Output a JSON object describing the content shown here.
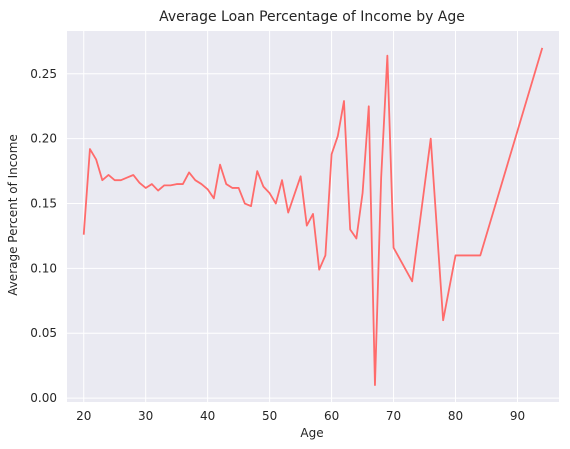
{
  "chart_data": {
    "type": "line",
    "title": "Average Loan Percentage of Income by Age",
    "xlabel": "Age",
    "ylabel": "Average Percent of Income",
    "xlim": [
      17.3,
      96.7
    ],
    "ylim": [
      -0.003,
      0.283
    ],
    "xticks": [
      20,
      30,
      40,
      50,
      60,
      70,
      80,
      90
    ],
    "yticks": [
      0.0,
      0.05,
      0.1,
      0.15,
      0.2,
      0.25
    ],
    "ytick_labels": [
      "0.00",
      "0.05",
      "0.10",
      "0.15",
      "0.20",
      "0.25"
    ],
    "grid": true,
    "background": "#eaeaf2",
    "grid_color": "#ffffff",
    "line_color": "#ff6b6b",
    "series": [
      {
        "x": [
          20,
          21,
          22,
          23,
          24,
          25,
          26,
          27,
          28,
          29,
          30,
          31,
          32,
          33,
          34,
          35,
          36,
          37,
          38,
          39,
          40,
          41,
          42,
          43,
          44,
          45,
          46,
          47,
          48,
          49,
          50,
          51,
          52,
          53,
          54,
          55,
          56,
          57,
          58,
          59,
          60,
          61,
          62,
          63,
          64,
          65,
          66,
          67,
          68,
          69,
          70,
          73,
          76,
          78,
          80,
          84,
          94
        ],
        "y": [
          0.126,
          0.192,
          0.184,
          0.168,
          0.172,
          0.168,
          0.168,
          0.17,
          0.172,
          0.166,
          0.162,
          0.165,
          0.16,
          0.164,
          0.164,
          0.165,
          0.165,
          0.174,
          0.168,
          0.165,
          0.161,
          0.154,
          0.18,
          0.165,
          0.162,
          0.162,
          0.15,
          0.148,
          0.175,
          0.163,
          0.158,
          0.15,
          0.168,
          0.143,
          0.157,
          0.171,
          0.133,
          0.142,
          0.099,
          0.11,
          0.188,
          0.202,
          0.229,
          0.13,
          0.123,
          0.158,
          0.225,
          0.01,
          0.17,
          0.264,
          0.116,
          0.09,
          0.2,
          0.06,
          0.11,
          0.11,
          0.27
        ]
      }
    ]
  }
}
